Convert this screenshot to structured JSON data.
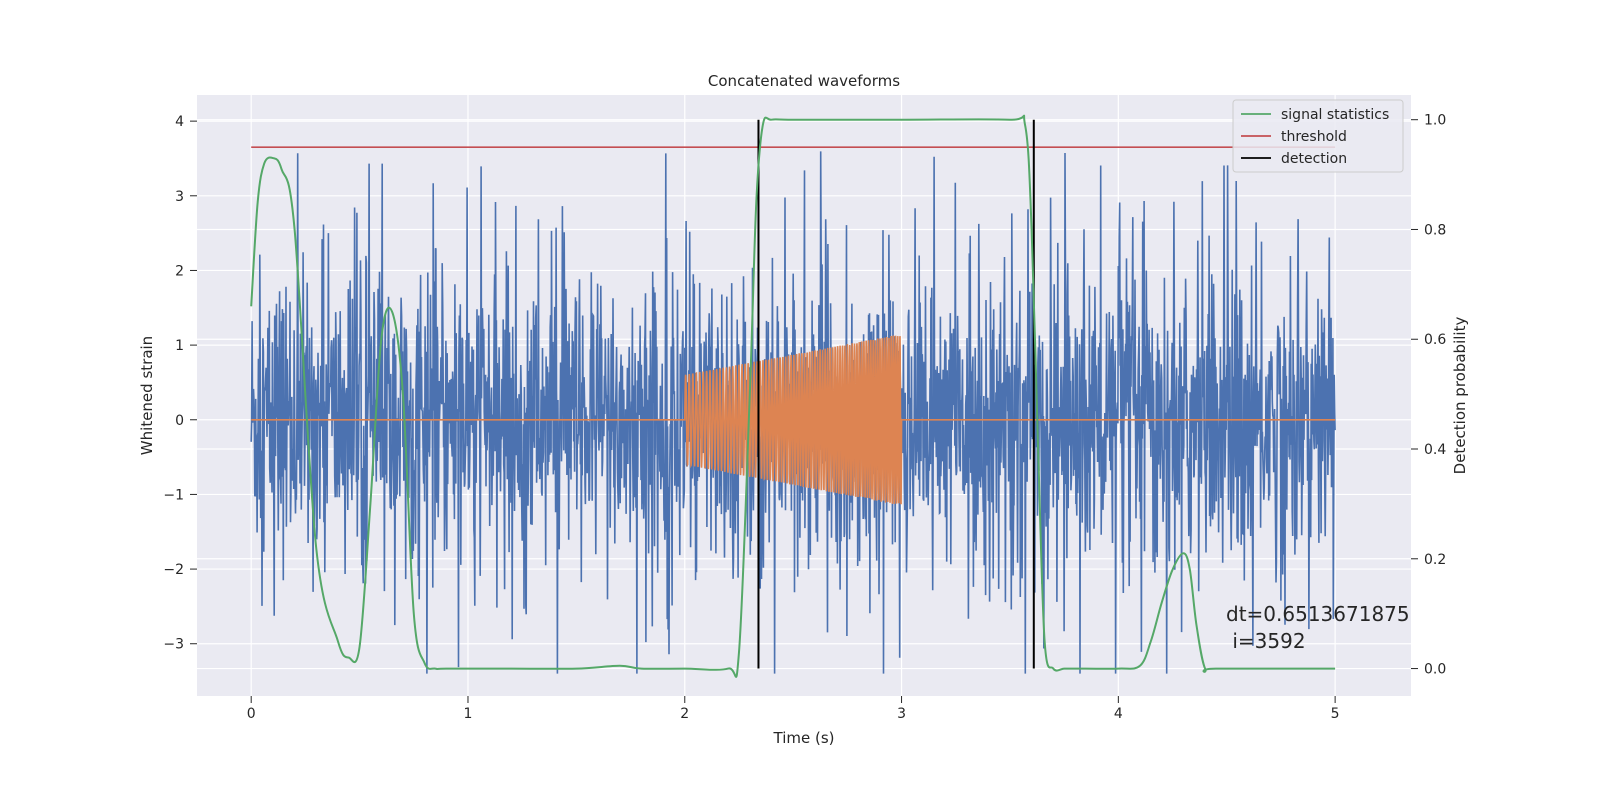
{
  "chart_data": {
    "type": "line",
    "title": "Concatenated waveforms",
    "xlabel": "Time (s)",
    "ylabel_left": "Whitened strain",
    "ylabel_right": "Detection probability",
    "xlim": [
      -0.25,
      5.35
    ],
    "ylim_left": [
      -3.7,
      4.35
    ],
    "ylim_right": [
      -0.05,
      1.045
    ],
    "xticks": [
      0,
      1,
      2,
      3,
      4,
      5
    ],
    "xtick_labels": [
      "0",
      "1",
      "2",
      "3",
      "4",
      "5"
    ],
    "yticks_left": [
      -3,
      -2,
      -1,
      0,
      1,
      2,
      3,
      4
    ],
    "ytick_labels_left": [
      "−3",
      "−2",
      "−1",
      "0",
      "1",
      "2",
      "3",
      "4"
    ],
    "yticks_right": [
      0.0,
      0.2,
      0.4,
      0.6,
      0.8,
      1.0
    ],
    "ytick_labels_right": [
      "0.0",
      "0.2",
      "0.4",
      "0.6",
      "0.8",
      "1.0"
    ],
    "grid": true,
    "legend_position": "top-right",
    "series": [
      {
        "name": "signal statistics",
        "axis": "right",
        "color": "#55a868",
        "x": [
          0.0,
          0.03,
          0.06,
          0.1,
          0.14,
          0.2,
          0.3,
          0.4,
          0.45,
          0.5,
          0.55,
          0.6,
          0.65,
          0.7,
          0.75,
          0.8,
          0.85,
          0.9,
          1.2,
          1.5,
          1.7,
          1.8,
          2.0,
          2.2,
          2.25,
          2.3,
          2.33,
          2.36,
          2.4,
          2.5,
          3.0,
          3.5,
          3.57,
          3.6,
          3.63,
          3.66,
          3.7,
          3.75,
          3.8,
          4.0,
          4.1,
          4.15,
          4.2,
          4.25,
          4.3,
          4.33,
          4.36,
          4.4,
          4.45,
          5.0
        ],
        "y": [
          0.66,
          0.85,
          0.92,
          0.93,
          0.91,
          0.8,
          0.22,
          0.05,
          0.02,
          0.04,
          0.3,
          0.6,
          0.65,
          0.5,
          0.1,
          0.01,
          0.0,
          0.0,
          0.0,
          0.0,
          0.005,
          0.0,
          0.0,
          0.0,
          0.03,
          0.5,
          0.85,
          0.99,
          1.0,
          1.0,
          1.0,
          1.0,
          0.99,
          0.8,
          0.4,
          0.05,
          0.0,
          0.0,
          0.0,
          0.0,
          0.005,
          0.05,
          0.12,
          0.18,
          0.21,
          0.18,
          0.08,
          0.0,
          0.0,
          0.0
        ]
      },
      {
        "name": "threshold",
        "axis": "right",
        "color": "#c44e52",
        "x": [
          0,
          5
        ],
        "y": [
          0.95,
          0.95
        ]
      },
      {
        "name": "detection",
        "axis": "right",
        "color": "#000000",
        "x": [
          2.34,
          3.61
        ],
        "y": [
          1.0,
          1.0
        ]
      },
      {
        "name": "",
        "axis": "left",
        "color": "#4c72b0",
        "description_range": [
          0,
          5
        ],
        "peak_range": [
          -3.4,
          4.0
        ]
      },
      {
        "name": "",
        "axis": "left",
        "color": "#dd8452",
        "injection_start": 2.0,
        "injection_end": 3.0,
        "amplitude_start": 0.6,
        "amplitude_end": 1.15
      }
    ],
    "annotation": {
      "line1": "dt=0.6513671875",
      "line2": " i=3592",
      "x": 4.5,
      "y_left": -2.6
    }
  }
}
